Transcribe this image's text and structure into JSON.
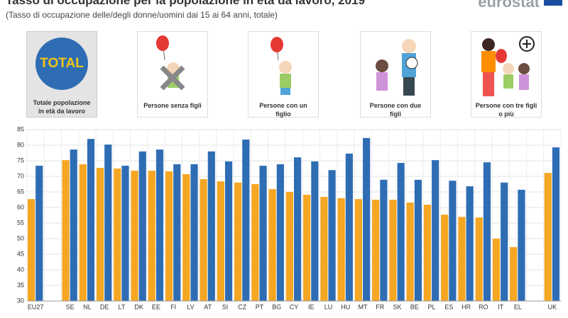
{
  "header": {
    "logo": "eurostat"
  },
  "filters": [
    {
      "icon": "TOTAL",
      "label": "Totale popolazione in età da lavoro"
    },
    {
      "label": "Persone senza figli"
    },
    {
      "label": "Persone con un figlio"
    },
    {
      "label": "Persone con due figli"
    },
    {
      "label": "Persone con tre figli o più"
    }
  ],
  "chart_data": {
    "type": "bar",
    "title": "Tasso di occupazione per la popolazione in età da lavoro, 2019",
    "subtitle": "(Tasso di occupazione delle/degli donne/uomini dai 15 ai 64 anni, totale)",
    "categories": [
      "EU27",
      null,
      "SE",
      "NL",
      "DE",
      "LT",
      "DK",
      "EE",
      "FI",
      "LV",
      "AT",
      "SI",
      "CZ",
      "PT",
      "BG",
      "CY",
      "IE",
      "LU",
      "HU",
      "MT",
      "FR",
      "SK",
      "BE",
      "PL",
      "ES",
      "HR",
      "RO",
      "IT",
      "EL",
      null,
      "UK"
    ],
    "series": [
      {
        "color": "#f5a623",
        "values": [
          62.7,
          null,
          75.2,
          73.9,
          72.7,
          72.5,
          71.8,
          71.8,
          71.6,
          70.7,
          69.1,
          68.4,
          68.0,
          67.5,
          65.9,
          65.0,
          64.1,
          63.4,
          63.0,
          62.7,
          62.5,
          62.5,
          61.6,
          60.9,
          57.7,
          57.0,
          56.8,
          50.0,
          47.3,
          null,
          71.1
        ]
      },
      {
        "color": "#2e6db4",
        "values": [
          73.4,
          null,
          78.6,
          82.0,
          80.2,
          73.4,
          78.0,
          78.6,
          73.9,
          73.9,
          78.0,
          74.8,
          81.8,
          73.4,
          73.9,
          76.1,
          74.8,
          72.0,
          77.3,
          82.3,
          68.9,
          74.3,
          68.9,
          75.2,
          68.6,
          66.8,
          74.5,
          68.0,
          65.7,
          null,
          79.3
        ]
      }
    ],
    "ylim": [
      30,
      85
    ],
    "yticks": [
      30,
      35,
      40,
      45,
      50,
      55,
      60,
      65,
      70,
      75,
      80,
      85
    ],
    "grid": true
  }
}
